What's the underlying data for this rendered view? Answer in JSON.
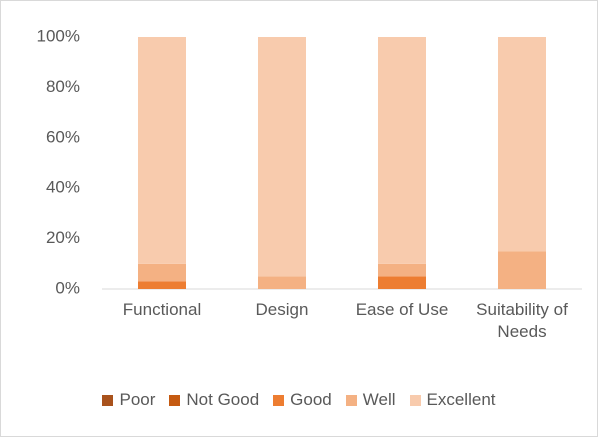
{
  "chart_data": {
    "type": "stacked_bar",
    "categories": [
      "Functional",
      "Design",
      "Ease of Use",
      "Suitability of Needs"
    ],
    "series": [
      {
        "name": "Poor",
        "color": "#a9521c",
        "values": [
          0,
          0,
          0,
          0
        ]
      },
      {
        "name": "Not Good",
        "color": "#c55a11",
        "values": [
          0,
          0,
          0,
          0
        ]
      },
      {
        "name": "Good",
        "color": "#ed7d31",
        "values": [
          3,
          0,
          5,
          0
        ]
      },
      {
        "name": "Well",
        "color": "#f4b183",
        "values": [
          7,
          5,
          5,
          15
        ]
      },
      {
        "name": "Excellent",
        "color": "#f8cbad",
        "values": [
          90,
          95,
          90,
          85
        ]
      }
    ],
    "ylim": [
      0,
      100
    ],
    "yticks": [
      {
        "value": 0,
        "label": "0%"
      },
      {
        "value": 20,
        "label": "20%"
      },
      {
        "value": 40,
        "label": "40%"
      },
      {
        "value": 60,
        "label": "60%"
      },
      {
        "value": 80,
        "label": "80%"
      },
      {
        "value": 100,
        "label": "100%"
      }
    ],
    "grid": false,
    "legend": "bottom"
  }
}
